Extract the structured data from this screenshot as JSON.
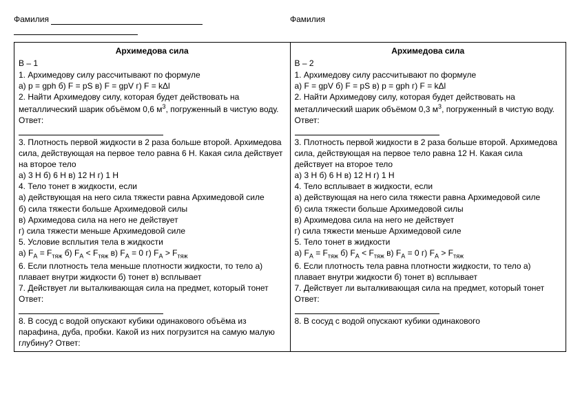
{
  "header": {
    "surname_label": "Фамилия"
  },
  "col1": {
    "title": "Архимедова сила",
    "variant": "В – 1",
    "q1": "1. Архимедову силу рассчитывают по формуле",
    "q1_opts": "а) p = gph       б) F = pS        в) F =  gpV    г) F = kΔl",
    "q2a": "2. Найти Архимедову силу, которая будет действовать на металлический шарик объёмом 0,6 м",
    "q2b": ", погруженный в чистую воду.     Ответ:",
    "q3": "3. Плотность первой жидкости в 2 раза больше второй. Архимедова сила, действующая на первое тело равна 6 Н. Какая сила действует на второе тело",
    "q3_opts": "а) 3 Н      б) 6 Н        в) 12 Н    г) 1 Н",
    "q4": "4. Тело тонет в жидкости, если",
    "q4a": "а) действующая на него сила тяжести равна Архимедовой силе",
    "q4b": "б) сила тяжести больше Архимедовой силы",
    "q4c": "в) Архимедова сила на него не действует",
    "q4d": "г) сила тяжести меньше Архимедовой силе",
    "q5": "5. Условие всплытия тела в жидкости",
    "q5_opts_a": "а) F",
    "q5_opts_b": " = F",
    "q5_opts_c": "       б) F",
    "q5_opts_d": " < F",
    "q5_opts_e": "        в) F",
    "q5_opts_f": " = 0    г) F",
    "q5_opts_g": " > F",
    "q6": "6. Если плотность тела меньше плотности жидкости, то тело        а) плавает внутри жидкости      б) тонет     в) всплывает",
    "q7": "7. Действует ли выталкивающая сила на предмет, который тонет       Ответ:",
    "q8": "8. В сосуд с водой опускают кубики одинакового объёма из парафина, дуба, пробки. Какой из них погрузится на самую малую глубину?  Ответ:"
  },
  "col2": {
    "title": "Архимедова сила",
    "variant": "В – 2",
    "q1": "1. Архимедову силу рассчитывают по формуле",
    "q1_opts": "а) F =  gpV    б) F = pS        в) p = gph          г) F = kΔl",
    "q2a": "2. Найти Архимедову силу, которая будет действовать на металлический шарик объёмом 0,3 м",
    "q2b": ", погруженный в чистую воду.     Ответ:",
    "q3": "3. Плотность первой жидкости в 2 раза больше второй. Архимедова сила, действующая на первое тело равна 12 Н. Какая сила действует на второе тело",
    "q3_opts": "а) 3 Н      б) 6 Н        в) 12 Н    г) 1 Н",
    "q4": "4. Тело всплывает  в жидкости, если",
    "q4a": "а) действующая на него сила тяжести равна Архимедовой силе",
    "q4b": "б) сила тяжести больше Архимедовой силы",
    "q4c": "в) Архимедова сила на него не действует",
    "q4d": "г) сила тяжести меньше Архимедовой силе",
    "q5": "5. Тело тонет  в жидкости",
    "q5_opts_a": "а) F",
    "q5_opts_b": " = F",
    "q5_opts_c": "       б) F",
    "q5_opts_d": " < F",
    "q5_opts_e": "        в) F",
    "q5_opts_f": " = 0    г) F",
    "q5_opts_g": " > F",
    "q6": "6. Если плотность тела равна плотности жидкости, то тело        а) плавает внутри жидкости      б) тонет     в) всплывает",
    "q7": "7. Действует ли выталкивающая сила на предмет, который тонет       Ответ:",
    "q8": "8. В сосуд с водой опускают кубики одинакового"
  }
}
